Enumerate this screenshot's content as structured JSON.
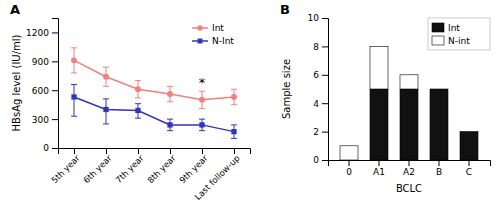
{
  "chart_data": [
    {
      "type": "line",
      "title": "A",
      "categories": [
        "5th year",
        "6th year",
        "7th year",
        "8th year",
        "9th year",
        "Last follow-up"
      ],
      "ylabel": "HBsAg level (IU/ml)",
      "ylim": [
        0,
        1350
      ],
      "yticks": [
        0,
        300,
        600,
        900,
        1200
      ],
      "legend": "upper right",
      "series": [
        {
          "name": "Int",
          "color": "#f08080",
          "marker": "circle",
          "values": [
            910,
            740,
            610,
            560,
            500,
            530
          ],
          "error_low": [
            130,
            100,
            90,
            80,
            90,
            80
          ],
          "error_high": [
            130,
            100,
            90,
            80,
            90,
            80
          ]
        },
        {
          "name": "N-Int",
          "color": "#3333bb",
          "marker": "square",
          "values": [
            530,
            400,
            390,
            240,
            240,
            170
          ],
          "error_low": [
            200,
            150,
            80,
            60,
            60,
            70
          ],
          "error_high": [
            130,
            110,
            70,
            60,
            60,
            70
          ]
        }
      ],
      "annotations": [
        {
          "text": "*",
          "x": "9th year"
        }
      ]
    },
    {
      "type": "bar",
      "title": "B",
      "stacked": true,
      "categories": [
        "0",
        "A1",
        "A2",
        "B",
        "C"
      ],
      "xlabel": "BCLC",
      "ylabel": "Sample size",
      "ylim": [
        0,
        10
      ],
      "yticks": [
        0,
        2,
        4,
        6,
        8,
        10
      ],
      "legend": "upper right",
      "series": [
        {
          "name": "Int",
          "color": "#111111",
          "values": [
            0,
            5,
            5,
            5,
            2
          ]
        },
        {
          "name": "N-int",
          "color": "#ffffff",
          "values": [
            1,
            3,
            1,
            0,
            0
          ]
        }
      ]
    }
  ]
}
